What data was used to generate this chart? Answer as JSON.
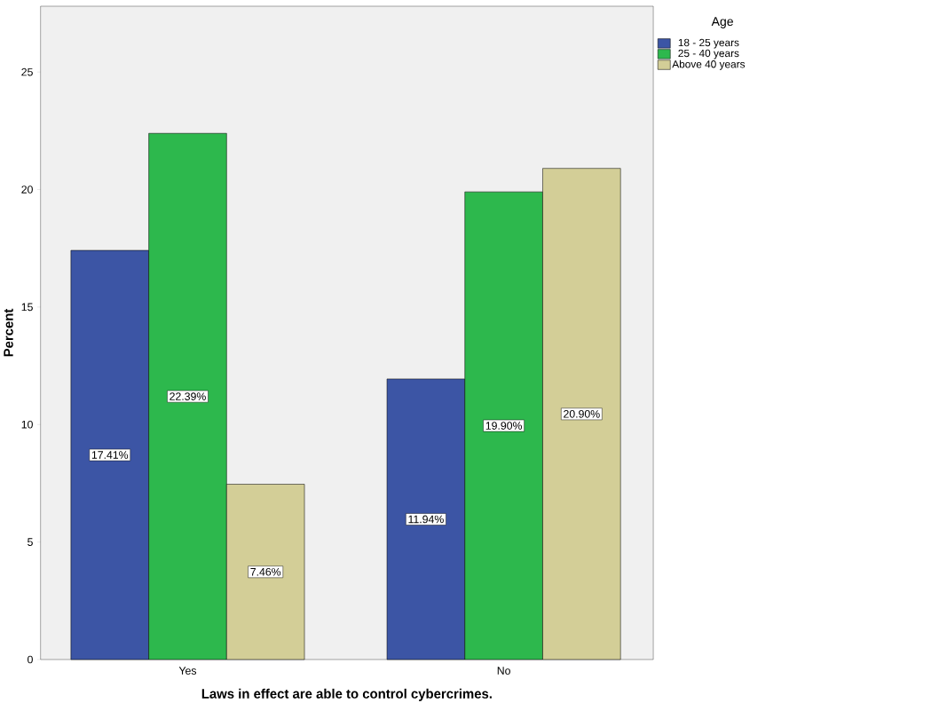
{
  "chart_data": {
    "type": "bar",
    "xlabel": "Laws in effect are able to control cybercrimes.",
    "ylabel": "Percent",
    "legend_title": "Age",
    "categories": [
      "Yes",
      "No"
    ],
    "series": [
      {
        "name": "18 - 25 years",
        "color": "#3c55a5",
        "values": [
          17.41,
          11.94
        ],
        "value_labels": [
          "17.41%",
          "11.94%"
        ]
      },
      {
        "name": "25 - 40 years",
        "color": "#2db84d",
        "values": [
          22.39,
          19.9
        ],
        "value_labels": [
          "22.39%",
          "19.90%"
        ]
      },
      {
        "name": "Above 40 years",
        "color": "#d3ce97",
        "values": [
          7.46,
          20.9
        ],
        "value_labels": [
          "7.46%",
          "20.90%"
        ]
      }
    ],
    "ylim": [
      0,
      27.8
    ],
    "yticks": [
      0,
      5,
      10,
      15,
      20,
      25
    ],
    "grid": false,
    "legend": "top right"
  }
}
